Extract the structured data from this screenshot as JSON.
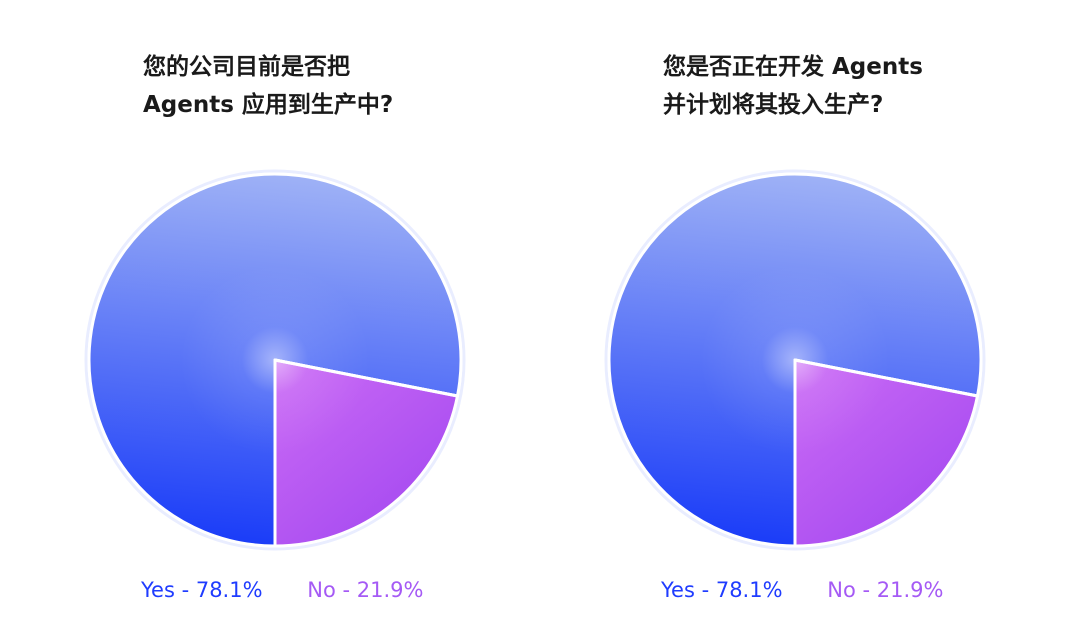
{
  "colors": {
    "yes_light": "#9fb2f6",
    "yes_dark": "#1a3cf8",
    "no_light": "#cc6cf5",
    "no_dark": "#a247f0",
    "title_text": "#1a1a1a",
    "yes_text": "#1f3cff",
    "no_text": "#a55af5"
  },
  "charts": [
    {
      "title_lines": [
        "您的公司目前是否把",
        "Agents 应用到生产中?"
      ],
      "legend": [
        "Yes - 78.1%",
        "No - 21.9%"
      ]
    },
    {
      "title_lines": [
        "您是否正在开发 Agents",
        "并计划将其投入生产?"
      ],
      "legend": [
        "Yes - 78.1%",
        "No - 21.9%"
      ]
    }
  ],
  "chart_data": [
    {
      "type": "pie",
      "title": "您的公司目前是否把 Agents 应用到生产中?",
      "categories": [
        "Yes",
        "No"
      ],
      "values": [
        78.1,
        21.9
      ],
      "unit": "%",
      "legend_placement": "bottom"
    },
    {
      "type": "pie",
      "title": "您是否正在开发 Agents 并计划将其投入生产?",
      "categories": [
        "Yes",
        "No"
      ],
      "values": [
        78.1,
        21.9
      ],
      "unit": "%",
      "legend_placement": "bottom"
    }
  ]
}
